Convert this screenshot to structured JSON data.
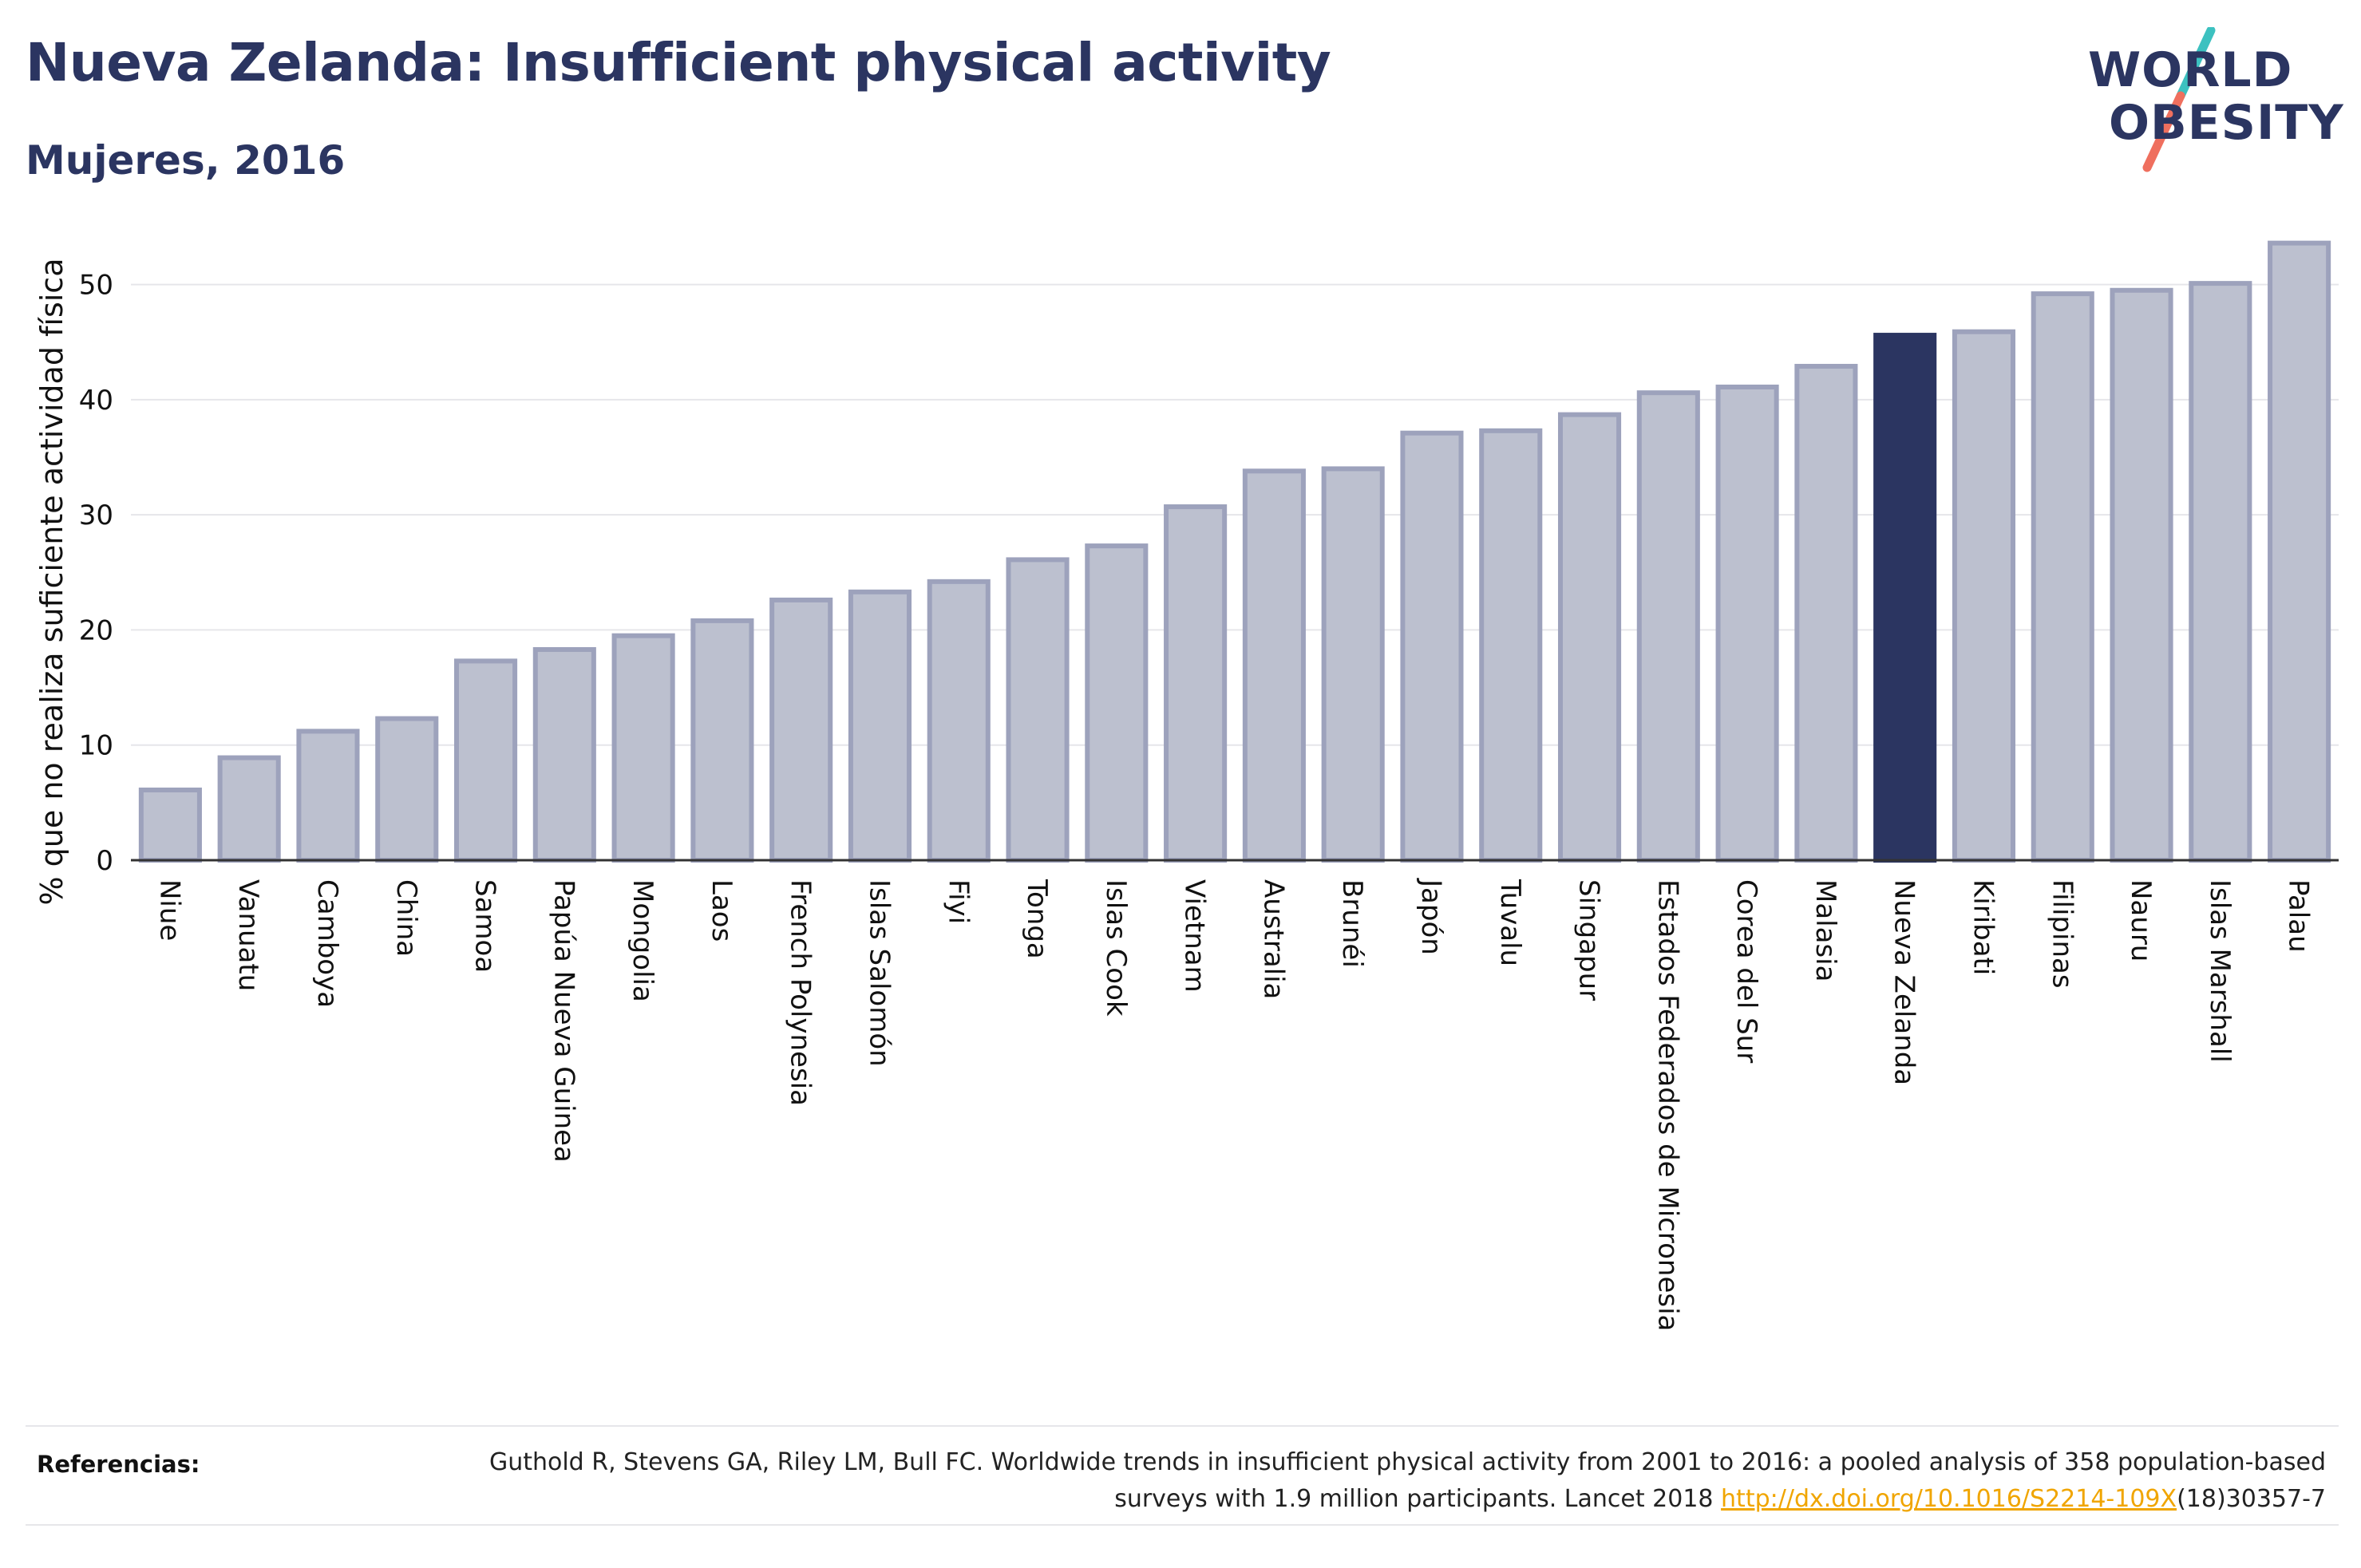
{
  "header": {
    "title": "Nueva Zelanda: Insufficient physical activity",
    "subtitle": "Mujeres, 2016"
  },
  "logo": {
    "line1": "WORLD",
    "line2": "OBESITY",
    "colors": {
      "text": "#2b3561",
      "slash_top": "#3cc1c0",
      "slash_bottom": "#ef6f5e"
    }
  },
  "colors": {
    "bar_fill": "#bcc0cf",
    "bar_stroke": "#9da2bc",
    "highlight": "#2b3561",
    "grid": "#e6e6ea",
    "axis": "#333333",
    "link": "#f0a500"
  },
  "chart_data": {
    "type": "bar",
    "title": "Nueva Zelanda: Insufficient physical activity",
    "subtitle": "Mujeres, 2016",
    "xlabel": "",
    "ylabel": "% que no realiza suficiente actividad física",
    "ylim": [
      0,
      56
    ],
    "yticks": [
      0,
      10,
      20,
      30,
      40,
      50
    ],
    "grid": true,
    "highlight": "Nueva Zelanda",
    "categories": [
      "Niue",
      "Vanuatu",
      "Camboya",
      "China",
      "Samoa",
      "Papúa Nueva Guinea",
      "Mongolia",
      "Laos",
      "French Polynesia",
      "Islas Salomón",
      "Fiyi",
      "Tonga",
      "Islas Cook",
      "Vietnam",
      "Australia",
      "Brunéi",
      "Japón",
      "Tuvalu",
      "Singapur",
      "Estados Federados de Micronesia",
      "Corea del Sur",
      "Malasia",
      "Nueva Zelanda",
      "Kiribati",
      "Filipinas",
      "Nauru",
      "Islas Marshall",
      "Palau"
    ],
    "values": [
      6.1,
      8.9,
      11.2,
      12.3,
      17.3,
      18.3,
      19.5,
      20.8,
      22.6,
      23.3,
      24.2,
      26.1,
      27.3,
      30.7,
      33.8,
      34.0,
      37.1,
      37.3,
      38.7,
      40.6,
      41.1,
      42.9,
      45.6,
      45.9,
      49.2,
      49.5,
      50.1,
      53.6
    ]
  },
  "references": {
    "label": "Referencias:",
    "text_before": "Guthold R, Stevens GA, Riley LM, Bull FC. Worldwide trends in insufficient physical activity from 2001 to 2016: a pooled analysis of 358 population-based surveys with 1.9 million participants. Lancet 2018 ",
    "link": "http://dx.doi.org/10.1016/S2214-109X",
    "text_after": "(18)30357-7"
  }
}
